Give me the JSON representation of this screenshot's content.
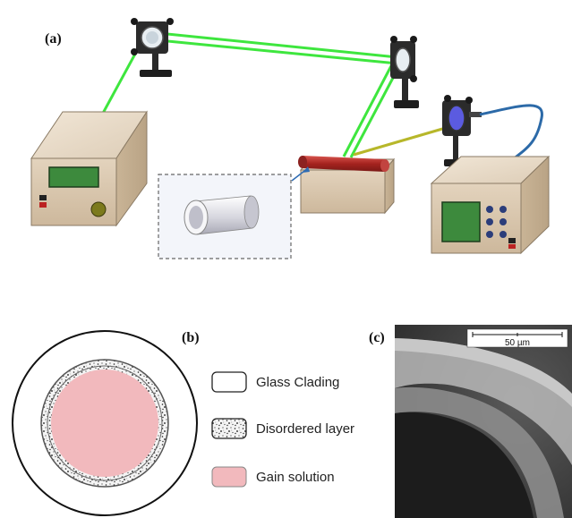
{
  "panels": {
    "a": {
      "label": "(a)"
    },
    "b": {
      "label": "(b)"
    },
    "c": {
      "label": "(c)"
    }
  },
  "legend": {
    "items": [
      {
        "key": "glass",
        "label": "Glass Clading",
        "color": "#ffffff"
      },
      {
        "key": "disorder",
        "label": "Disordered layer",
        "color": "#f2f2f2"
      },
      {
        "key": "gain",
        "label": "Gain solution",
        "color": "#f2b9bd"
      }
    ]
  },
  "micrograph": {
    "scalebar_label": "50 µm"
  },
  "colors": {
    "laser_beam": "#3ee63e",
    "signal_fiber": "#b7b72a",
    "blue_fiber": "#2c6aa8",
    "box_body": "#d9c6ad",
    "display_green": "#3d8a3d",
    "capillary_red": "#b8312f",
    "gain_pink": "#f2b9bd"
  }
}
